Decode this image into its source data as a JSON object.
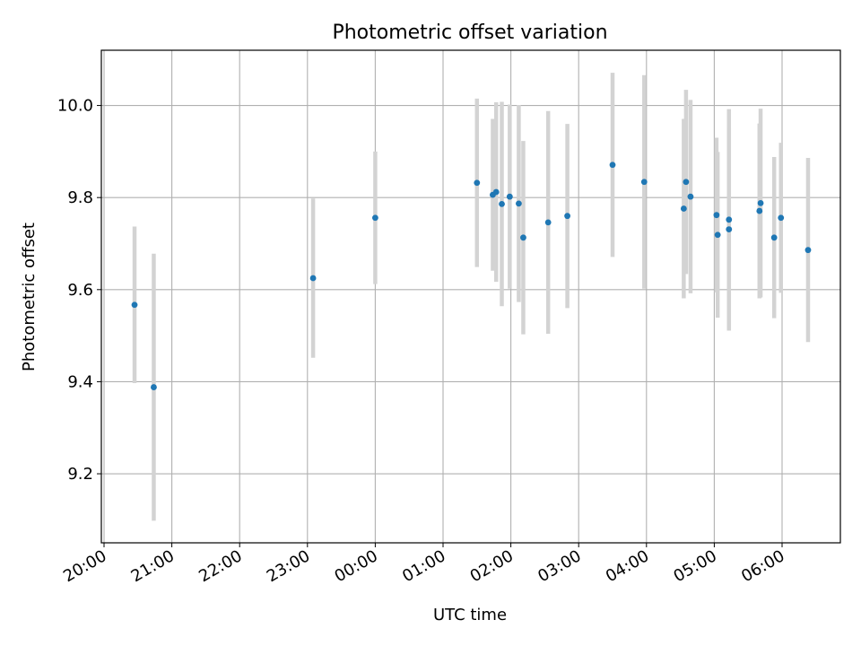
{
  "chart_data": {
    "type": "scatter",
    "title": "Photometric offset variation",
    "xlabel": "UTC time",
    "ylabel": "Photometric offset",
    "x_axis_type": "time",
    "xlim": [
      "20:00",
      "06:52"
    ],
    "ylim": [
      9.05,
      10.12
    ],
    "xticks": [
      "20:00",
      "21:00",
      "22:00",
      "23:00",
      "00:00",
      "01:00",
      "02:00",
      "03:00",
      "04:00",
      "05:00",
      "06:00"
    ],
    "yticks": [
      "9.2",
      "9.4",
      "9.6",
      "9.8",
      "10.0"
    ],
    "grid": true,
    "colors": {
      "point": "#1f77b4",
      "errorbar": "#d3d3d3",
      "grid": "#b0b0b0"
    },
    "points": [
      {
        "x": "20:27",
        "y": 9.567,
        "err": 0.17
      },
      {
        "x": "20:44",
        "y": 9.388,
        "err": 0.29
      },
      {
        "x": "23:05",
        "y": 9.625,
        "err": 0.173
      },
      {
        "x": "00:00",
        "y": 9.756,
        "err": 0.144
      },
      {
        "x": "01:30",
        "y": 9.832,
        "err": 0.183
      },
      {
        "x": "01:44",
        "y": 9.806,
        "err": 0.165
      },
      {
        "x": "01:47",
        "y": 9.812,
        "err": 0.195
      },
      {
        "x": "01:52",
        "y": 9.786,
        "err": 0.222
      },
      {
        "x": "01:59",
        "y": 9.802,
        "err": 0.2
      },
      {
        "x": "02:07",
        "y": 9.787,
        "err": 0.214
      },
      {
        "x": "02:11",
        "y": 9.713,
        "err": 0.21
      },
      {
        "x": "02:33",
        "y": 9.746,
        "err": 0.242
      },
      {
        "x": "02:50",
        "y": 9.76,
        "err": 0.2
      },
      {
        "x": "03:30",
        "y": 9.871,
        "err": 0.2
      },
      {
        "x": "03:58",
        "y": 9.834,
        "err": 0.232
      },
      {
        "x": "04:33",
        "y": 9.776,
        "err": 0.195
      },
      {
        "x": "04:35",
        "y": 9.834,
        "err": 0.2
      },
      {
        "x": "04:39",
        "y": 9.802,
        "err": 0.21
      },
      {
        "x": "05:02",
        "y": 9.762,
        "err": 0.168
      },
      {
        "x": "05:03",
        "y": 9.719,
        "err": 0.18
      },
      {
        "x": "05:13",
        "y": 9.752,
        "err": 0.24
      },
      {
        "x": "05:13",
        "y": 9.731,
        "err": 0.22
      },
      {
        "x": "05:40",
        "y": 9.771,
        "err": 0.19
      },
      {
        "x": "05:41",
        "y": 9.788,
        "err": 0.205
      },
      {
        "x": "05:53",
        "y": 9.713,
        "err": 0.175
      },
      {
        "x": "05:59",
        "y": 9.756,
        "err": 0.163
      },
      {
        "x": "06:23",
        "y": 9.686,
        "err": 0.2
      }
    ]
  }
}
